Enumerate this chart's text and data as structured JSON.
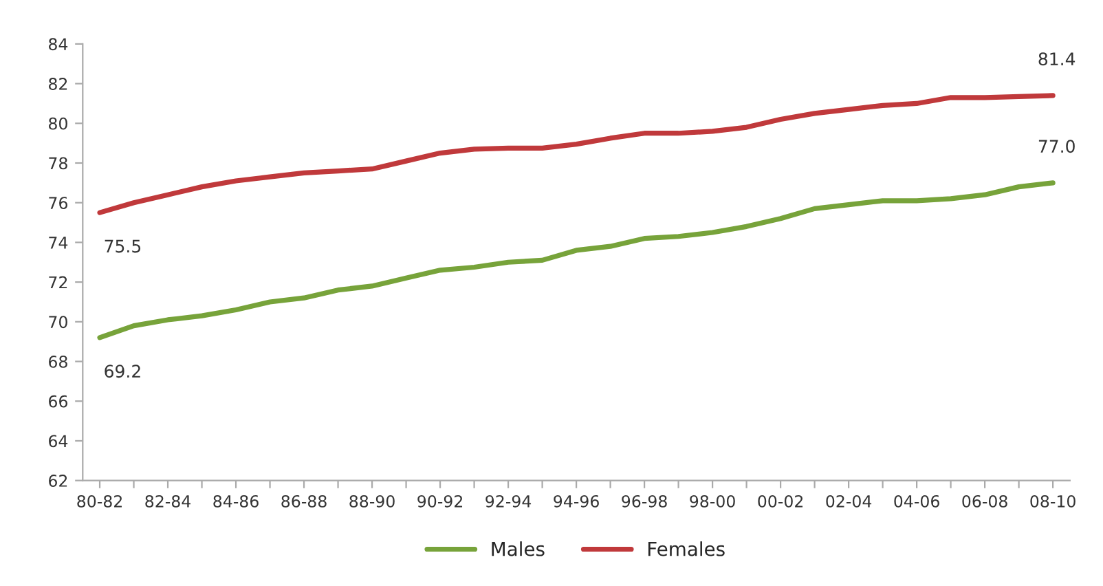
{
  "chart_data": {
    "type": "line",
    "categories": [
      "80-82",
      null,
      "82-84",
      null,
      "84-86",
      null,
      "86-88",
      null,
      "88-90",
      null,
      "90-92",
      null,
      "92-94",
      null,
      "94-96",
      null,
      "96-98",
      null,
      "98-00",
      null,
      "00-02",
      null,
      "02-04",
      null,
      "04-06",
      null,
      "06-08",
      null,
      "08-10"
    ],
    "series": [
      {
        "name": "Males",
        "color": "#77a33a",
        "values": [
          69.2,
          69.8,
          70.1,
          70.3,
          70.6,
          71.0,
          71.2,
          71.6,
          71.8,
          72.2,
          72.6,
          72.75,
          73.0,
          73.1,
          73.6,
          73.8,
          74.2,
          74.3,
          74.5,
          74.8,
          75.2,
          75.7,
          75.9,
          76.1,
          76.1,
          76.2,
          76.4,
          76.8,
          77.0
        ],
        "value_labels": [
          "69.2",
          null,
          null,
          null,
          null,
          null,
          null,
          null,
          null,
          null,
          null,
          null,
          null,
          null,
          null,
          null,
          null,
          null,
          null,
          null,
          null,
          null,
          null,
          null,
          null,
          null,
          null,
          null,
          "77.0"
        ]
      },
      {
        "name": "Females",
        "color": "#c0393b",
        "values": [
          75.5,
          76.0,
          76.4,
          76.8,
          77.1,
          77.3,
          77.5,
          77.6,
          77.7,
          78.1,
          78.5,
          78.7,
          78.75,
          78.75,
          78.95,
          79.25,
          79.5,
          79.5,
          79.6,
          79.8,
          80.2,
          80.5,
          80.7,
          80.9,
          81.0,
          81.3,
          81.3,
          81.35,
          81.4
        ],
        "value_labels": [
          "75.5",
          null,
          null,
          null,
          null,
          null,
          null,
          null,
          null,
          null,
          null,
          null,
          null,
          null,
          null,
          null,
          null,
          null,
          null,
          null,
          null,
          null,
          null,
          null,
          null,
          null,
          null,
          null,
          "81.4"
        ]
      }
    ],
    "ylim": [
      62,
      84
    ],
    "yticks": [
      62,
      64,
      66,
      68,
      70,
      72,
      74,
      76,
      78,
      80,
      82,
      84
    ],
    "grid": false,
    "legend": "bottom",
    "marker": "none",
    "line_style": "solid"
  }
}
